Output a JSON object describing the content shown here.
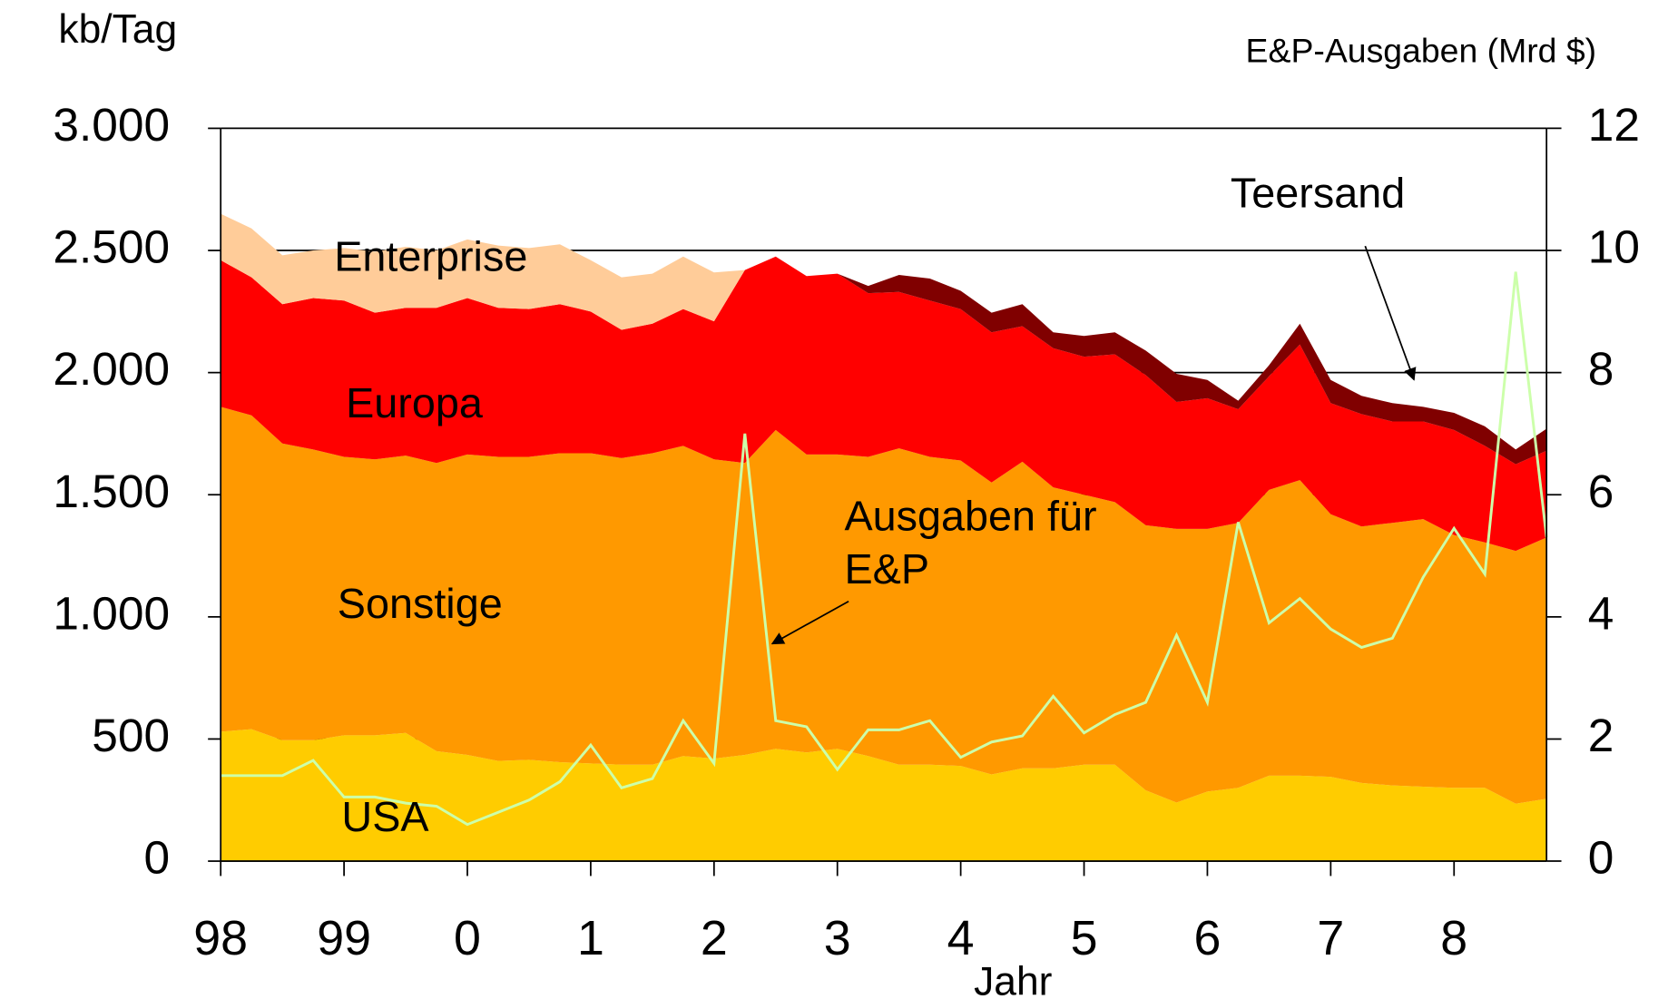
{
  "chart_data": {
    "type": "stacked_area",
    "y_label": "kb/Tag",
    "y2_label": "E&P-Ausgaben (Mrd $)",
    "x_label": "Jahr",
    "x": [
      1998,
      1998.25,
      1998.5,
      1998.75,
      1999,
      1999.25,
      1999.5,
      1999.75,
      2000,
      2000.25,
      2000.5,
      2000.75,
      2001,
      2001.25,
      2001.5,
      2001.75,
      2002,
      2002.25,
      2002.5,
      2002.75,
      2003,
      2003.25,
      2003.5,
      2003.75,
      2004,
      2004.25,
      2004.5,
      2004.75,
      2005,
      2005.25,
      2005.5,
      2005.75,
      2006,
      2006.25,
      2006.5,
      2006.75,
      2007,
      2007.25,
      2007.5,
      2007.75,
      2008,
      2008.25,
      2008.5,
      2008.75
    ],
    "xlim": [
      1998,
      2008.75
    ],
    "xticks": [
      {
        "value": 1998,
        "label": "98"
      },
      {
        "value": 1999,
        "label": "99"
      },
      {
        "value": 2000,
        "label": "0"
      },
      {
        "value": 2001,
        "label": "1"
      },
      {
        "value": 2002,
        "label": "2"
      },
      {
        "value": 2003,
        "label": "3"
      },
      {
        "value": 2004,
        "label": "4"
      },
      {
        "value": 2005,
        "label": "5"
      },
      {
        "value": 2006,
        "label": "6"
      },
      {
        "value": 2007,
        "label": "7"
      },
      {
        "value": 2008,
        "label": "8"
      }
    ],
    "ylim": [
      0,
      3000
    ],
    "yticks": [
      0,
      500,
      {
        "value": 1000,
        "label": "1.000"
      },
      {
        "value": 1500,
        "label": "1.500"
      },
      {
        "value": 2000,
        "label": "2.000"
      },
      {
        "value": 2500,
        "label": "2.500"
      },
      {
        "value": 3000,
        "label": "3.000"
      }
    ],
    "y2lim": [
      0,
      12
    ],
    "y2ticks": [
      0,
      2,
      4,
      6,
      8,
      10,
      12
    ],
    "grid": true,
    "series": [
      {
        "name": "USA",
        "color": "#ffcc00",
        "values": [
          530,
          540,
          495,
          495,
          515,
          515,
          525,
          450,
          435,
          410,
          415,
          405,
          400,
          395,
          395,
          430,
          420,
          435,
          460,
          445,
          460,
          430,
          395,
          395,
          390,
          355,
          380,
          380,
          395,
          395,
          290,
          240,
          285,
          300,
          350,
          350,
          345,
          320,
          310,
          305,
          300,
          300,
          235,
          255
        ]
      },
      {
        "name": "Sonstige",
        "color": "#ff9900",
        "values": [
          1330,
          1285,
          1215,
          1190,
          1140,
          1130,
          1135,
          1180,
          1230,
          1245,
          1240,
          1265,
          1270,
          1255,
          1275,
          1270,
          1225,
          1195,
          1305,
          1220,
          1205,
          1225,
          1295,
          1260,
          1250,
          1195,
          1255,
          1150,
          1105,
          1075,
          1085,
          1120,
          1075,
          1085,
          1170,
          1210,
          1075,
          1050,
          1075,
          1095,
          1035,
          1005,
          1035,
          1070
        ]
      },
      {
        "name": "Europa",
        "color": "#ff0000",
        "values": [
          600,
          565,
          570,
          620,
          640,
          600,
          605,
          635,
          640,
          610,
          605,
          610,
          580,
          525,
          530,
          560,
          565,
          790,
          710,
          730,
          740,
          670,
          640,
          640,
          620,
          615,
          555,
          570,
          565,
          605,
          615,
          520,
          535,
          465,
          465,
          555,
          455,
          460,
          415,
          400,
          430,
          395,
          355,
          355
        ]
      },
      {
        "name": "Enterprise",
        "color": "#ffcc99",
        "values": [
          190,
          200,
          200,
          195,
          215,
          250,
          250,
          235,
          240,
          255,
          250,
          245,
          210,
          215,
          205,
          215,
          200,
          0,
          0,
          0,
          0,
          0,
          0,
          0,
          0,
          0,
          0,
          0,
          0,
          0,
          0,
          0,
          0,
          0,
          0,
          0,
          0,
          0,
          0,
          0,
          0,
          0,
          0,
          0
        ]
      },
      {
        "name": "Teersand",
        "color": "#800000",
        "values": [
          0,
          0,
          0,
          0,
          0,
          0,
          0,
          0,
          0,
          0,
          0,
          0,
          0,
          0,
          0,
          0,
          0,
          0,
          0,
          0,
          0,
          30,
          70,
          90,
          75,
          80,
          90,
          65,
          85,
          90,
          100,
          115,
          75,
          35,
          45,
          85,
          95,
          75,
          75,
          60,
          70,
          80,
          60,
          90
        ]
      },
      {
        "name": "Ausgaben für E&P",
        "color": "#ccffaa",
        "axis": "y2",
        "type": "line",
        "values": [
          1.4,
          1.4,
          1.4,
          1.65,
          1.05,
          1.05,
          0.95,
          0.9,
          0.6,
          0.8,
          1.0,
          1.3,
          1.9,
          1.2,
          1.35,
          2.3,
          1.6,
          7.0,
          2.3,
          2.2,
          1.5,
          2.15,
          2.15,
          2.3,
          1.7,
          1.95,
          2.05,
          2.7,
          2.1,
          2.4,
          2.6,
          3.7,
          2.6,
          5.55,
          3.9,
          4.3,
          3.8,
          3.5,
          3.65,
          4.65,
          5.45,
          4.7,
          9.65,
          5.3
        ]
      }
    ]
  }
}
